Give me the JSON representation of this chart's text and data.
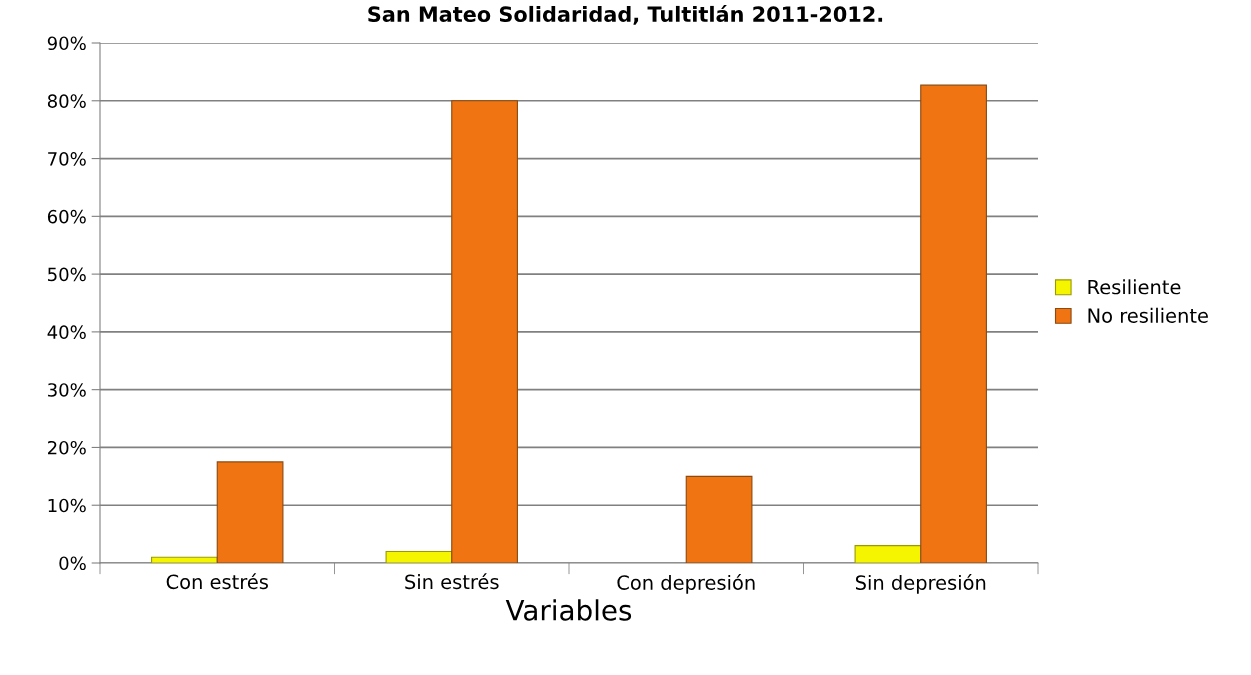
{
  "chart_data": {
    "type": "bar",
    "title": "San Mateo Solidaridad, Tultitlán 2011-2012.",
    "xlabel": "Variables",
    "categories": [
      "Con estrés",
      "Sin estrés",
      "Con depresión",
      "Sin depresión"
    ],
    "series": [
      {
        "name": "Resiliente",
        "color": "#f5f500",
        "values": [
          1,
          2,
          0,
          3
        ]
      },
      {
        "name": "No resiliente",
        "color": "#f07412",
        "values": [
          17.5,
          80,
          15,
          82.7
        ]
      }
    ],
    "ylim": [
      0,
      90
    ],
    "yticks": [
      {
        "value": 0,
        "label": "0%"
      },
      {
        "value": 10,
        "label": "10%"
      },
      {
        "value": 20,
        "label": "20%"
      },
      {
        "value": 30,
        "label": "30%"
      },
      {
        "value": 40,
        "label": "40%"
      },
      {
        "value": 50,
        "label": "50%"
      },
      {
        "value": 60,
        "label": "60%"
      },
      {
        "value": 70,
        "label": "70%"
      },
      {
        "value": 80,
        "label": "80%"
      },
      {
        "value": 90,
        "label": "90%"
      }
    ],
    "grid": "y",
    "legend": "right"
  }
}
